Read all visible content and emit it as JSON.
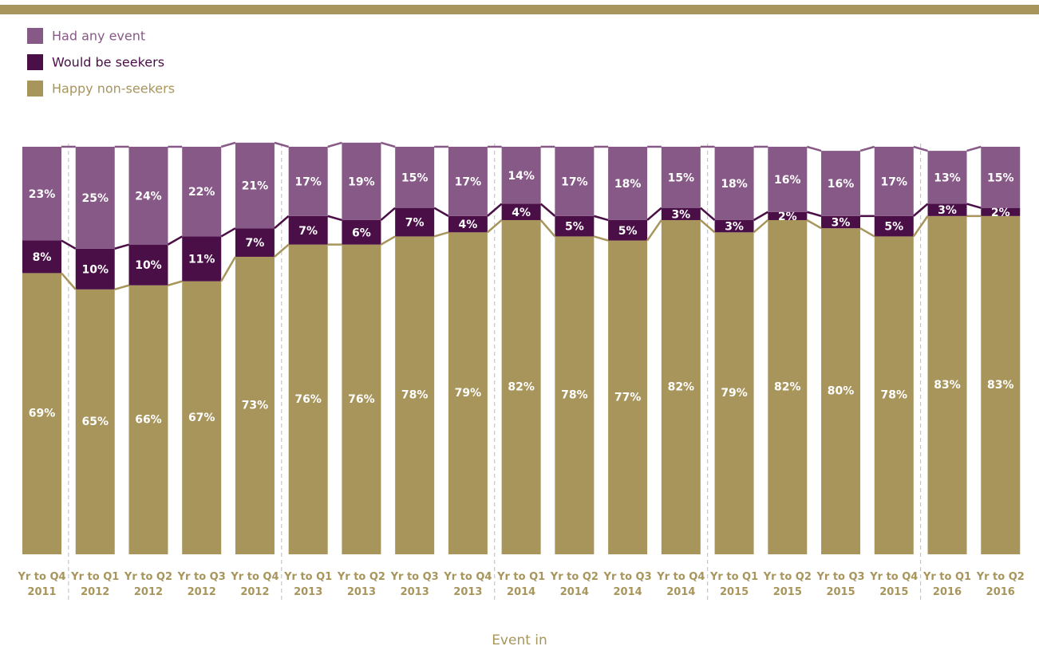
{
  "chart_data": {
    "type": "stacked_bar",
    "x_label": "Event in",
    "categories": [
      "Yr to Q4\n2011",
      "Yr to Q1\n2012",
      "Yr to Q2\n2012",
      "Yr to Q3\n2012",
      "Yr to Q4\n2012",
      "Yr to Q1\n2013",
      "Yr to Q2\n2013",
      "Yr to Q3\n2013",
      "Yr to Q4\n2013",
      "Yr to Q1\n2014",
      "Yr to Q2\n2014",
      "Yr to Q3\n2014",
      "Yr to Q4\n2014",
      "Yr to Q1\n2015",
      "Yr to Q2\n2015",
      "Yr to Q3\n2015",
      "Yr to Q4\n2015",
      "Yr to Q1\n2016",
      "Yr to Q2\n2016"
    ],
    "ylim": [
      0,
      100
    ],
    "legend": "top-left",
    "series": [
      {
        "name": "Happy non-seekers",
        "color": "#a8955c",
        "values": [
          69,
          65,
          66,
          67,
          73,
          76,
          76,
          78,
          79,
          82,
          78,
          77,
          82,
          79,
          82,
          80,
          78,
          83,
          83
        ],
        "value_labels": [
          "69%",
          "65%",
          "66%",
          "67%",
          "73%",
          "76%",
          "76%",
          "78%",
          "79%",
          "82%",
          "78%",
          "77%",
          "82%",
          "79%",
          "82%",
          "80%",
          "78%",
          "83%",
          "83%"
        ]
      },
      {
        "name": "Would be seekers",
        "color": "#4b0f48",
        "values": [
          8,
          10,
          10,
          11,
          7,
          7,
          6,
          7,
          4,
          4,
          5,
          5,
          3,
          3,
          2,
          3,
          5,
          3,
          2
        ],
        "value_labels": [
          "8%",
          "10%",
          "10%",
          "11%",
          "7%",
          "7%",
          "6%",
          "7%",
          "4%",
          "4%",
          "5%",
          "5%",
          "3%",
          "3%",
          "2%",
          "3%",
          "5%",
          "3%",
          "2%"
        ]
      },
      {
        "name": "Had any event",
        "color": "#875987",
        "values": [
          23,
          25,
          24,
          22,
          21,
          17,
          19,
          15,
          17,
          14,
          17,
          18,
          15,
          18,
          16,
          16,
          17,
          13,
          15
        ],
        "value_labels": [
          "23%",
          "25%",
          "24%",
          "22%",
          "21%",
          "17%",
          "19%",
          "15%",
          "17%",
          "14%",
          "17%",
          "18%",
          "15%",
          "18%",
          "16%",
          "16%",
          "17%",
          "13%",
          "15%"
        ]
      }
    ]
  }
}
